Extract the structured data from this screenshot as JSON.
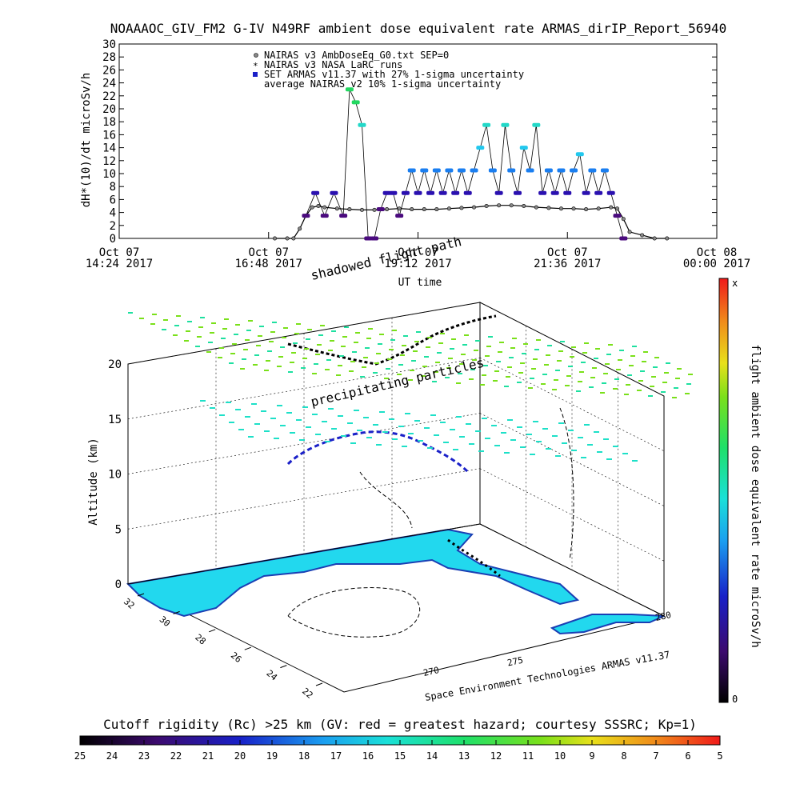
{
  "title": "NOAAAOC_GIV_FM2 G-IV   N49RF  ambient dose equivalent rate ARMAS_dirIP_Report_56940",
  "chart_data": [
    {
      "type": "line",
      "ylabel": "dH*(10)/dt microSv/h",
      "xlabel": "UT time",
      "ylim": [
        0,
        30
      ],
      "yticks": [
        "0",
        "2",
        "4",
        "6",
        "8",
        "10",
        "12",
        "14",
        "16",
        "18",
        "20",
        "22",
        "24",
        "26",
        "28",
        "30"
      ],
      "xlim": [
        "2017-10-07T14:24",
        "2017-10-08T00:00"
      ],
      "xticks": [
        {
          "line1": "Oct 07",
          "line2": "14:24 2017"
        },
        {
          "line1": "Oct 07",
          "line2": "16:48 2017"
        },
        {
          "line1": "Oct 07",
          "line2": "19:12 2017"
        },
        {
          "line1": "Oct 07",
          "line2": "21:36 2017"
        },
        {
          "line1": "Oct 08",
          "line2": "00:00 2017"
        }
      ],
      "legend": [
        "NAIRAS v3 AmbDoseEq_G0.txt SEP=0",
        "NAIRAS v3 NASA LaRC runs",
        "SET ARMAS v11.37 with 27% 1-sigma uncertainty",
        "average NAIRAS v2 10% 1-sigma uncertainty"
      ],
      "legend_position": "top-center",
      "series": [
        {
          "name": "NAIRAS v3 AmbDoseEq_G0.txt SEP=0",
          "x_hours": [
            16.9,
            17.1,
            17.2,
            17.3,
            17.4,
            17.5,
            17.6,
            17.7,
            17.9,
            18.1,
            18.3,
            18.5,
            18.7,
            18.9,
            19.1,
            19.3,
            19.5,
            19.7,
            19.9,
            20.1,
            20.3,
            20.5,
            20.7,
            20.9,
            21.1,
            21.3,
            21.5,
            21.7,
            21.9,
            22.1,
            22.3,
            22.4,
            22.5,
            22.6,
            22.8,
            23.0,
            23.2
          ],
          "y": [
            0,
            0,
            0,
            1.5,
            3.5,
            4.8,
            5.0,
            4.8,
            4.6,
            4.5,
            4.4,
            4.4,
            4.5,
            4.6,
            4.5,
            4.5,
            4.5,
            4.6,
            4.7,
            4.8,
            5.0,
            5.1,
            5.1,
            5.0,
            4.8,
            4.7,
            4.6,
            4.6,
            4.5,
            4.6,
            4.8,
            4.6,
            3.0,
            1.0,
            0.5,
            0,
            0
          ]
        },
        {
          "name": "SET ARMAS v11.37 with 27% 1-sigma uncertainty",
          "x_hours": [
            17.4,
            17.55,
            17.7,
            17.85,
            18.0,
            18.1,
            18.2,
            18.3,
            18.4,
            18.5,
            18.6,
            18.7,
            18.8,
            18.9,
            19.0,
            19.1,
            19.2,
            19.3,
            19.4,
            19.5,
            19.6,
            19.7,
            19.8,
            19.9,
            20.0,
            20.1,
            20.2,
            20.3,
            20.4,
            20.5,
            20.6,
            20.7,
            20.8,
            20.9,
            21.0,
            21.1,
            21.2,
            21.3,
            21.4,
            21.5,
            21.6,
            21.7,
            21.8,
            21.9,
            22.0,
            22.1,
            22.2,
            22.3,
            22.4,
            22.5
          ],
          "y": [
            3.5,
            7.0,
            3.5,
            7.0,
            3.5,
            23.0,
            21.0,
            17.5,
            0,
            0,
            4.5,
            7.0,
            7.0,
            3.5,
            7.0,
            10.5,
            7.0,
            10.5,
            7.0,
            10.5,
            7.0,
            10.5,
            7.0,
            10.5,
            7.0,
            10.5,
            14.0,
            17.5,
            10.5,
            7.0,
            17.5,
            10.5,
            7.0,
            14.0,
            10.5,
            17.5,
            7.0,
            10.5,
            7.0,
            10.5,
            7.0,
            10.5,
            13.0,
            7.0,
            10.5,
            7.0,
            10.5,
            7.0,
            3.5,
            0
          ]
        }
      ]
    },
    {
      "type": "scatter3d",
      "title_annotations": [
        "shadowed flight path",
        "precipitating particles"
      ],
      "zlabel": "Altitude (km)",
      "zticks": [
        "0",
        "5",
        "10",
        "15",
        "20"
      ],
      "xticks": [
        "270",
        "275",
        "280"
      ],
      "yticks": [
        "22",
        "24",
        "26",
        "28",
        "30",
        "32"
      ],
      "credit": "Space Environment Technologies ARMAS v11.37",
      "colorbar": {
        "label": "flight ambient dose equivalent rate microSv/h",
        "top": "x",
        "bottom": "0"
      }
    },
    {
      "type": "colorbar",
      "title": "Cutoff rigidity (Rc) >25 km (GV: red = greatest hazard; courtesy SSSRC; Kp=1)",
      "ticks": [
        "25",
        "24",
        "23",
        "22",
        "21",
        "20",
        "19",
        "18",
        "17",
        "16",
        "15",
        "14",
        "13",
        "12",
        "11",
        "10",
        "9",
        "8",
        "7",
        "6",
        "5"
      ]
    }
  ]
}
